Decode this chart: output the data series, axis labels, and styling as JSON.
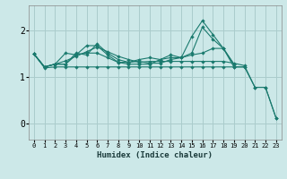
{
  "xlabel": "Humidex (Indice chaleur)",
  "bg_color": "#cce8e8",
  "grid_color": "#aacccc",
  "line_color": "#1a7a6e",
  "xlim": [
    -0.5,
    23.5
  ],
  "ylim": [
    -0.35,
    2.55
  ],
  "yticks": [
    0,
    1,
    2
  ],
  "xticks": [
    0,
    1,
    2,
    3,
    4,
    5,
    6,
    7,
    8,
    9,
    10,
    11,
    12,
    13,
    14,
    15,
    16,
    17,
    18,
    19,
    20,
    21,
    22,
    23
  ],
  "lines": [
    {
      "x": [
        0,
        1,
        2,
        3,
        4,
        5,
        6,
        7,
        8,
        9,
        10,
        11,
        12,
        13,
        14,
        15,
        16,
        17,
        18,
        19,
        20,
        21,
        22,
        23
      ],
      "y": [
        1.5,
        1.22,
        1.28,
        1.35,
        1.45,
        1.55,
        1.65,
        1.55,
        1.45,
        1.38,
        1.32,
        1.34,
        1.34,
        1.34,
        1.34,
        1.34,
        1.34,
        1.34,
        1.34,
        1.3,
        1.25,
        0.78,
        0.78,
        0.12
      ]
    },
    {
      "x": [
        0,
        1,
        2,
        3,
        4,
        5,
        6,
        7,
        8,
        9,
        10,
        11,
        12,
        13,
        14,
        15,
        16,
        17,
        18,
        19,
        20,
        21,
        22,
        23
      ],
      "y": [
        1.5,
        1.22,
        1.28,
        1.52,
        1.48,
        1.68,
        1.68,
        1.48,
        1.32,
        1.32,
        1.34,
        1.3,
        1.3,
        1.38,
        1.42,
        1.88,
        2.22,
        1.92,
        1.62,
        1.22,
        1.22,
        null,
        null,
        null
      ]
    },
    {
      "x": [
        0,
        1,
        2,
        3,
        4,
        5,
        6,
        7,
        8,
        9,
        10,
        11,
        12,
        13,
        14,
        15,
        16,
        17,
        18,
        19,
        20,
        21,
        22,
        23
      ],
      "y": [
        1.5,
        1.22,
        1.28,
        1.28,
        1.48,
        1.52,
        1.52,
        1.42,
        1.32,
        1.28,
        1.28,
        1.28,
        1.38,
        1.48,
        1.42,
        1.48,
        1.52,
        1.62,
        1.62,
        1.28,
        null,
        null,
        null,
        null
      ]
    },
    {
      "x": [
        0,
        1,
        2,
        3,
        4,
        5,
        6,
        7,
        8,
        9,
        10,
        11,
        12,
        13,
        14,
        15,
        16,
        17,
        18,
        19,
        20,
        21,
        22,
        23
      ],
      "y": [
        1.5,
        1.22,
        1.28,
        1.28,
        1.52,
        1.48,
        1.72,
        1.52,
        1.38,
        1.32,
        1.38,
        1.42,
        1.38,
        1.42,
        1.42,
        1.52,
        2.08,
        1.82,
        1.62,
        1.28,
        null,
        null,
        null,
        null
      ]
    },
    {
      "x": [
        0,
        1,
        2,
        3,
        4,
        5,
        6,
        7,
        8,
        9,
        10,
        11,
        12,
        13,
        14,
        15,
        16,
        17,
        18,
        19,
        20,
        21,
        22,
        23
      ],
      "y": [
        1.5,
        1.2,
        1.22,
        1.22,
        1.22,
        1.22,
        1.22,
        1.22,
        1.22,
        1.22,
        1.22,
        1.22,
        1.22,
        1.22,
        1.22,
        1.22,
        1.22,
        1.22,
        1.22,
        1.22,
        1.22,
        0.78,
        0.78,
        0.12
      ]
    }
  ]
}
